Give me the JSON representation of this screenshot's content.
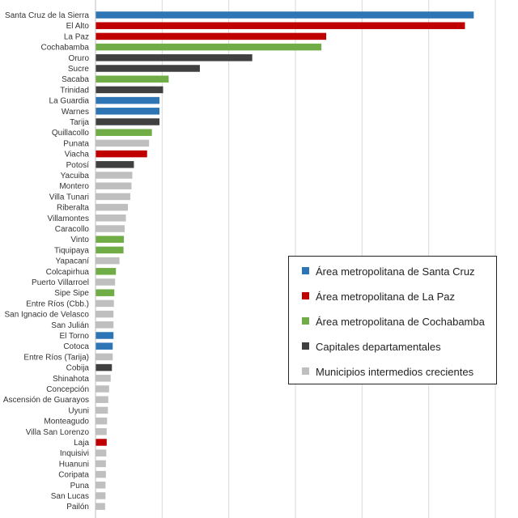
{
  "chart_data": {
    "type": "bar",
    "orientation": "horizontal",
    "grid": true,
    "legend_position": "right",
    "groups": {
      "scz": {
        "name": "Área metropolitana de Santa Cruz",
        "color": "#2E75B6"
      },
      "lpz": {
        "name": "Área metropolitana de La Paz",
        "color": "#C00000"
      },
      "cbba": {
        "name": "Área metropolitana de Cochabamba",
        "color": "#70AD47"
      },
      "cap": {
        "name": "Capitales departamentales",
        "color": "#404040"
      },
      "mun": {
        "name": "Municipios intermedios crecientes",
        "color": "#BFBFBF"
      }
    },
    "legend_order": [
      "scz",
      "lpz",
      "cbba",
      "cap",
      "mun"
    ],
    "xlim": [
      0,
      100
    ],
    "bars": [
      {
        "label": "Santa Cruz de la Sierra",
        "value": 94.5,
        "group": "scz"
      },
      {
        "label": "El Alto",
        "value": 92.3,
        "group": "lpz"
      },
      {
        "label": "La Paz",
        "value": 57.6,
        "group": "lpz"
      },
      {
        "label": "Cochabamba",
        "value": 56.4,
        "group": "cbba"
      },
      {
        "label": "Oruro",
        "value": 39.1,
        "group": "cap"
      },
      {
        "label": "Sucre",
        "value": 26.0,
        "group": "cap"
      },
      {
        "label": "Sacaba",
        "value": 18.2,
        "group": "cbba"
      },
      {
        "label": "Trinidad",
        "value": 16.8,
        "group": "cap"
      },
      {
        "label": "La Guardia",
        "value": 15.9,
        "group": "scz"
      },
      {
        "label": "Warnes",
        "value": 15.9,
        "group": "scz"
      },
      {
        "label": "Tarija",
        "value": 15.9,
        "group": "cap"
      },
      {
        "label": "Quillacollo",
        "value": 14.0,
        "group": "cbba"
      },
      {
        "label": "Punata",
        "value": 13.3,
        "group": "mun"
      },
      {
        "label": "Viacha",
        "value": 12.8,
        "group": "lpz"
      },
      {
        "label": "Potosí",
        "value": 9.5,
        "group": "cap"
      },
      {
        "label": "Yacuiba",
        "value": 9.1,
        "group": "mun"
      },
      {
        "label": "Montero",
        "value": 8.9,
        "group": "mun"
      },
      {
        "label": "Villa Tunari",
        "value": 8.6,
        "group": "mun"
      },
      {
        "label": "Riberalta",
        "value": 8.0,
        "group": "mun"
      },
      {
        "label": "Villamontes",
        "value": 7.5,
        "group": "mun"
      },
      {
        "label": "Caracollo",
        "value": 7.2,
        "group": "mun"
      },
      {
        "label": "Vinto",
        "value": 7.0,
        "group": "cbba"
      },
      {
        "label": "Tiquipaya",
        "value": 6.9,
        "group": "cbba"
      },
      {
        "label": "Yapacaní",
        "value": 5.9,
        "group": "mun"
      },
      {
        "label": "Colcapirhua",
        "value": 5.0,
        "group": "cbba"
      },
      {
        "label": "Puerto Villarroel",
        "value": 4.8,
        "group": "mun"
      },
      {
        "label": "Sipe Sipe",
        "value": 4.6,
        "group": "cbba"
      },
      {
        "label": "Entre Ríos (Cbb.)",
        "value": 4.5,
        "group": "mun"
      },
      {
        "label": "San Ignacio de Velasco",
        "value": 4.4,
        "group": "mun"
      },
      {
        "label": "San Julián",
        "value": 4.4,
        "group": "mun"
      },
      {
        "label": "El Torno",
        "value": 4.4,
        "group": "scz"
      },
      {
        "label": "Cotoca",
        "value": 4.2,
        "group": "scz"
      },
      {
        "label": "Entre Ríos (Tarija)",
        "value": 4.2,
        "group": "mun"
      },
      {
        "label": "Cobija",
        "value": 4.0,
        "group": "cap"
      },
      {
        "label": "Shinahota",
        "value": 3.7,
        "group": "mun"
      },
      {
        "label": "Concepción",
        "value": 3.3,
        "group": "mun"
      },
      {
        "label": "Ascensión de Guarayos",
        "value": 3.1,
        "group": "mun"
      },
      {
        "label": "Uyuni",
        "value": 3.0,
        "group": "mun"
      },
      {
        "label": "Monteagudo",
        "value": 2.8,
        "group": "mun"
      },
      {
        "label": "Villa San Lorenzo",
        "value": 2.7,
        "group": "mun"
      },
      {
        "label": "Laja",
        "value": 2.7,
        "group": "lpz"
      },
      {
        "label": "Inquisivi",
        "value": 2.6,
        "group": "mun"
      },
      {
        "label": "Huanuni",
        "value": 2.5,
        "group": "mun"
      },
      {
        "label": "Coripata",
        "value": 2.5,
        "group": "mun"
      },
      {
        "label": "Puna",
        "value": 2.4,
        "group": "mun"
      },
      {
        "label": "San Lucas",
        "value": 2.4,
        "group": "mun"
      },
      {
        "label": "Pailón",
        "value": 2.3,
        "group": "mun"
      }
    ]
  }
}
